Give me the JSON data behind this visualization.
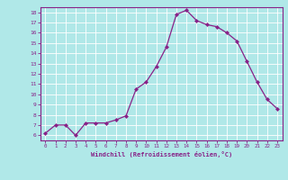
{
  "x": [
    0,
    1,
    2,
    3,
    4,
    5,
    6,
    7,
    8,
    9,
    10,
    11,
    12,
    13,
    14,
    15,
    16,
    17,
    18,
    19,
    20,
    21,
    22,
    23
  ],
  "y": [
    6.2,
    7.0,
    7.0,
    6.0,
    7.2,
    7.2,
    7.2,
    7.5,
    7.9,
    10.5,
    11.2,
    12.7,
    14.6,
    17.8,
    18.2,
    17.2,
    16.8,
    16.6,
    16.0,
    15.2,
    13.2,
    11.2,
    9.5,
    8.6
  ],
  "line_color": "#882288",
  "marker": "D",
  "marker_size": 2,
  "bg_color": "#b0e8e8",
  "grid_color": "#ffffff",
  "xlabel": "Windchill (Refroidissement éolien,°C)",
  "xlim": [
    -0.5,
    23.5
  ],
  "ylim": [
    5.5,
    18.5
  ],
  "yticks": [
    6,
    7,
    8,
    9,
    10,
    11,
    12,
    13,
    14,
    15,
    16,
    17,
    18
  ],
  "xticks": [
    0,
    1,
    2,
    3,
    4,
    5,
    6,
    7,
    8,
    9,
    10,
    11,
    12,
    13,
    14,
    15,
    16,
    17,
    18,
    19,
    20,
    21,
    22,
    23
  ],
  "tick_color": "#882288",
  "label_color": "#882288",
  "axis_color": "#882288",
  "font_family": "monospace"
}
